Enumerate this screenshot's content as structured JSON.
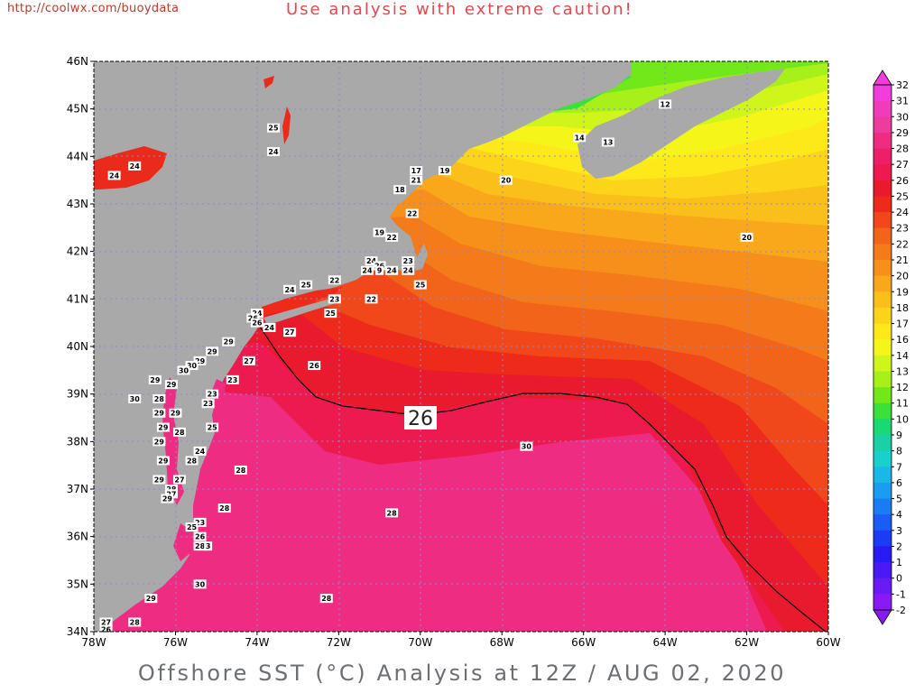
{
  "header": {
    "url": "http://coolwx.com/buoydata",
    "warning": "Use analysis with extreme caution!"
  },
  "title": "Offshore SST (°C) Analysis at 12Z / AUG 02, 2020",
  "map": {
    "lon_range": [
      -78,
      -60
    ],
    "lat_range": [
      34,
      46
    ],
    "x_ticks": [
      "78W",
      "76W",
      "74W",
      "72W",
      "70W",
      "68W",
      "66W",
      "64W",
      "62W",
      "60W"
    ],
    "y_ticks": [
      "34N",
      "35N",
      "36N",
      "37N",
      "38N",
      "39N",
      "40N",
      "41N",
      "42N",
      "43N",
      "44N",
      "45N",
      "46N"
    ],
    "land_color": "#a9a9a9",
    "grid": "dotted",
    "isotherm_label": "26"
  },
  "colorbar": {
    "values": [
      "32",
      "31",
      "30",
      "29",
      "28",
      "27",
      "26",
      "25",
      "24",
      "23",
      "22",
      "21",
      "20",
      "19",
      "18",
      "17",
      "16",
      "14",
      "13",
      "12",
      "11",
      "10",
      "9",
      "8",
      "7",
      "6",
      "5",
      "4",
      "3",
      "2",
      "1",
      "0",
      "-1",
      "-2"
    ],
    "colors": [
      "#f23cdc",
      "#f03cb8",
      "#ee3c9c",
      "#ee2d82",
      "#ed1f68",
      "#ec1a4e",
      "#ea1a2e",
      "#ee2a1a",
      "#f0481a",
      "#f2641a",
      "#f47a1a",
      "#f6901a",
      "#f8a81a",
      "#fabf1a",
      "#fcd51a",
      "#fde81a",
      "#f6f51a",
      "#cff51a",
      "#a8f01a",
      "#72e81a",
      "#3ce03a",
      "#1ad872",
      "#1ad0a4",
      "#1ad0cc",
      "#1ab8e6",
      "#1a9cf0",
      "#1a7cf2",
      "#1a5cf4",
      "#1a3cf4",
      "#2a1af4",
      "#4a1af4",
      "#6a1af4",
      "#8a1af4"
    ]
  },
  "stations": [
    {
      "v": "12",
      "lon": -64.0,
      "lat": 45.1
    },
    {
      "v": "14",
      "lon": -66.1,
      "lat": 44.4
    },
    {
      "v": "13",
      "lon": -65.4,
      "lat": 44.3
    },
    {
      "v": "25",
      "lon": -73.6,
      "lat": 44.6
    },
    {
      "v": "24",
      "lon": -73.6,
      "lat": 44.1
    },
    {
      "v": "24",
      "lon": -77.0,
      "lat": 43.8
    },
    {
      "v": "24",
      "lon": -77.5,
      "lat": 43.6
    },
    {
      "v": "17",
      "lon": -70.1,
      "lat": 43.7
    },
    {
      "v": "21",
      "lon": -70.1,
      "lat": 43.5
    },
    {
      "v": "19",
      "lon": -69.4,
      "lat": 43.7
    },
    {
      "v": "20",
      "lon": -67.9,
      "lat": 43.5
    },
    {
      "v": "18",
      "lon": -70.5,
      "lat": 43.3
    },
    {
      "v": "22",
      "lon": -70.2,
      "lat": 42.8
    },
    {
      "v": "19",
      "lon": -71.0,
      "lat": 42.4
    },
    {
      "v": "22",
      "lon": -70.7,
      "lat": 42.3
    },
    {
      "v": "23",
      "lon": -70.3,
      "lat": 41.8
    },
    {
      "v": "20",
      "lon": -62.0,
      "lat": 42.3
    },
    {
      "v": "24",
      "lon": -71.2,
      "lat": 41.8
    },
    {
      "v": "26",
      "lon": -71.0,
      "lat": 41.7
    },
    {
      "v": "24",
      "lon": -71.3,
      "lat": 41.6
    },
    {
      "v": "9",
      "lon": -71.0,
      "lat": 41.6
    },
    {
      "v": "24",
      "lon": -70.7,
      "lat": 41.6
    },
    {
      "v": "24",
      "lon": -70.3,
      "lat": 41.6
    },
    {
      "v": "25",
      "lon": -70.0,
      "lat": 41.3
    },
    {
      "v": "22",
      "lon": -72.1,
      "lat": 41.4
    },
    {
      "v": "25",
      "lon": -72.8,
      "lat": 41.3
    },
    {
      "v": "24",
      "lon": -73.2,
      "lat": 41.2
    },
    {
      "v": "23",
      "lon": -72.1,
      "lat": 41.0
    },
    {
      "v": "22",
      "lon": -71.2,
      "lat": 41.0
    },
    {
      "v": "25",
      "lon": -72.2,
      "lat": 40.7
    },
    {
      "v": "24",
      "lon": -74.0,
      "lat": 40.7
    },
    {
      "v": "26",
      "lon": -74.1,
      "lat": 40.6
    },
    {
      "v": "26",
      "lon": -74.0,
      "lat": 40.5
    },
    {
      "v": "24",
      "lon": -73.7,
      "lat": 40.4
    },
    {
      "v": "27",
      "lon": -73.2,
      "lat": 40.3
    },
    {
      "v": "29",
      "lon": -74.7,
      "lat": 40.1
    },
    {
      "v": "29",
      "lon": -75.1,
      "lat": 39.9
    },
    {
      "v": "29",
      "lon": -75.4,
      "lat": 39.7
    },
    {
      "v": "27",
      "lon": -74.2,
      "lat": 39.7
    },
    {
      "v": "30",
      "lon": -75.6,
      "lat": 39.6
    },
    {
      "v": "30",
      "lon": -75.8,
      "lat": 39.5
    },
    {
      "v": "26",
      "lon": -72.6,
      "lat": 39.6
    },
    {
      "v": "23",
      "lon": -74.6,
      "lat": 39.3
    },
    {
      "v": "29",
      "lon": -76.5,
      "lat": 39.3
    },
    {
      "v": "29",
      "lon": -76.1,
      "lat": 39.2
    },
    {
      "v": "23",
      "lon": -75.1,
      "lat": 39.0
    },
    {
      "v": "30",
      "lon": -77.0,
      "lat": 38.9
    },
    {
      "v": "28",
      "lon": -76.4,
      "lat": 38.9
    },
    {
      "v": "23",
      "lon": -75.2,
      "lat": 38.8
    },
    {
      "v": "29",
      "lon": -76.4,
      "lat": 38.6
    },
    {
      "v": "29",
      "lon": -76.0,
      "lat": 38.6
    },
    {
      "v": "29",
      "lon": -76.3,
      "lat": 38.3
    },
    {
      "v": "28",
      "lon": -75.9,
      "lat": 38.2
    },
    {
      "v": "25",
      "lon": -75.1,
      "lat": 38.3
    },
    {
      "v": "29",
      "lon": -76.4,
      "lat": 38.0
    },
    {
      "v": "30",
      "lon": -67.4,
      "lat": 37.9
    },
    {
      "v": "24",
      "lon": -75.4,
      "lat": 37.8
    },
    {
      "v": "29",
      "lon": -76.3,
      "lat": 37.6
    },
    {
      "v": "28",
      "lon": -75.6,
      "lat": 37.6
    },
    {
      "v": "28",
      "lon": -74.4,
      "lat": 37.4
    },
    {
      "v": "29",
      "lon": -76.4,
      "lat": 37.2
    },
    {
      "v": "27",
      "lon": -75.9,
      "lat": 37.2
    },
    {
      "v": "28",
      "lon": -76.1,
      "lat": 37.0
    },
    {
      "v": "27",
      "lon": -76.1,
      "lat": 36.9
    },
    {
      "v": "29",
      "lon": -76.2,
      "lat": 36.8
    },
    {
      "v": "28",
      "lon": -74.8,
      "lat": 36.6
    },
    {
      "v": "28",
      "lon": -70.7,
      "lat": 36.5
    },
    {
      "v": "23",
      "lon": -75.4,
      "lat": 36.3
    },
    {
      "v": "25",
      "lon": -75.6,
      "lat": 36.2
    },
    {
      "v": "26",
      "lon": -75.4,
      "lat": 36.0
    },
    {
      "v": "28",
      "lon": -75.4,
      "lat": 35.8
    },
    {
      "v": "3",
      "lon": -75.2,
      "lat": 35.8
    },
    {
      "v": "30",
      "lon": -75.4,
      "lat": 35.0
    },
    {
      "v": "29",
      "lon": -76.6,
      "lat": 34.7
    },
    {
      "v": "28",
      "lon": -72.3,
      "lat": 34.7
    },
    {
      "v": "28",
      "lon": -77.0,
      "lat": 34.2
    },
    {
      "v": "27",
      "lon": -77.7,
      "lat": 34.2
    },
    {
      "v": "26",
      "lon": -77.7,
      "lat": 34.05
    }
  ]
}
